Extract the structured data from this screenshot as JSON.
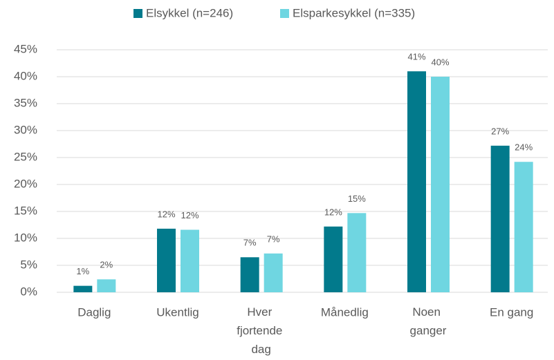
{
  "chart_data": {
    "type": "bar",
    "categories": [
      "Daglig",
      "Ukentlig",
      "Hver fjortende dag",
      "Månedlig",
      "Noen ganger",
      "En gang"
    ],
    "series": [
      {
        "name": "Elsykkel (n=246)",
        "color": "#027a8c",
        "values": [
          1.2,
          11.8,
          6.5,
          12.2,
          41,
          27.2
        ],
        "value_labels": [
          "1%",
          "12%",
          "7%",
          "12%",
          "41%",
          "27%"
        ]
      },
      {
        "name": "Elsparkesykkel (n=335)",
        "color": "#6fd6e1",
        "values": [
          2.4,
          11.6,
          7.2,
          14.7,
          40,
          24.2
        ],
        "value_labels": [
          "2%",
          "12%",
          "7%",
          "15%",
          "40%",
          "24%"
        ]
      }
    ],
    "ylim": [
      0,
      45
    ],
    "yticks": [
      {
        "value": 0,
        "label": "0%"
      },
      {
        "value": 5,
        "label": "5%"
      },
      {
        "value": 10,
        "label": "10%"
      },
      {
        "value": 15,
        "label": "15%"
      },
      {
        "value": 20,
        "label": "20%"
      },
      {
        "value": 25,
        "label": "25%"
      },
      {
        "value": 30,
        "label": "30%"
      },
      {
        "value": 35,
        "label": "35%"
      },
      {
        "value": 40,
        "label": "40%"
      },
      {
        "value": 45,
        "label": "45%"
      }
    ],
    "grid": true,
    "legend": "top"
  }
}
